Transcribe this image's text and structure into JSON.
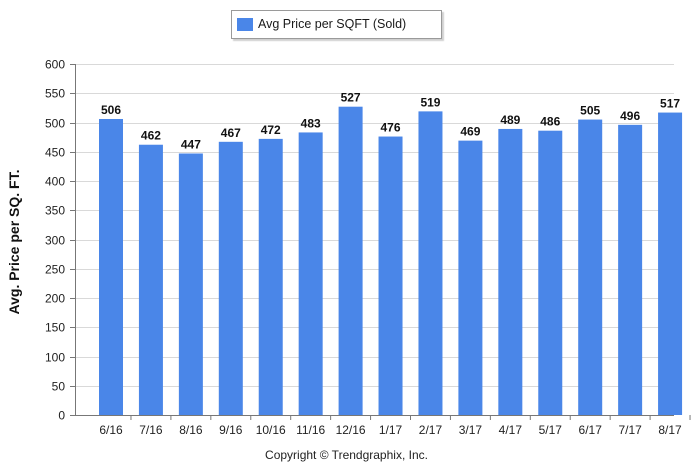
{
  "chart_data": {
    "type": "bar",
    "title": "",
    "xlabel": "",
    "ylabel": "Avg. Price per SQ. FT.",
    "ylim": [
      0,
      600
    ],
    "yticks": [
      0,
      50,
      100,
      150,
      200,
      250,
      300,
      350,
      400,
      450,
      500,
      550,
      600
    ],
    "categories": [
      "6/16",
      "7/16",
      "8/16",
      "9/16",
      "10/16",
      "11/16",
      "12/16",
      "1/17",
      "2/17",
      "3/17",
      "4/17",
      "5/17",
      "6/17",
      "7/17",
      "8/17"
    ],
    "series": [
      {
        "name": "Avg Price per SQFT (Sold)",
        "color": "#4a86e8",
        "values": [
          506,
          462,
          447,
          467,
          472,
          483,
          527,
          476,
          519,
          469,
          489,
          486,
          505,
          496,
          517
        ]
      }
    ],
    "grid": true,
    "data_labels": true,
    "legend_position": "top-center"
  },
  "footer": {
    "copyright": "Copyright © Trendgraphix, Inc."
  }
}
